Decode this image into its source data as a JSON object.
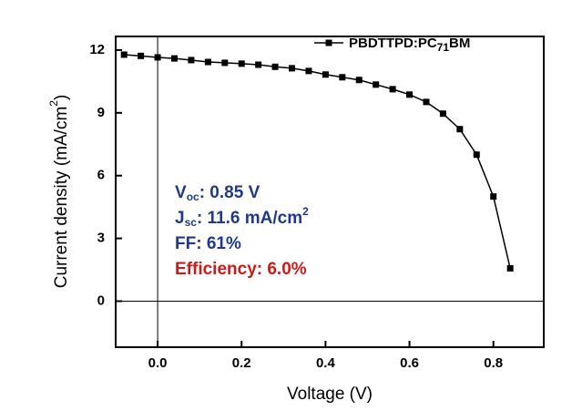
{
  "chart_data": {
    "type": "line",
    "x_label": "Voltage (V)",
    "y_label": [
      "Current density (mA/cm",
      "2",
      ")"
    ],
    "xlim": [
      -0.1,
      0.92
    ],
    "ylim": [
      -2.2,
      12.65
    ],
    "xticks": [
      {
        "value": 0,
        "label": "0.0"
      },
      {
        "value": 0.2,
        "label": "0.2"
      },
      {
        "value": 0.4,
        "label": "0.4"
      },
      {
        "value": 0.6,
        "label": "0.6"
      },
      {
        "value": 0.8,
        "label": "0.8"
      }
    ],
    "yticks": [
      0,
      3,
      6,
      9,
      12
    ],
    "zero_lines": true,
    "legend": "upper right",
    "x": [
      -0.08,
      -0.04,
      0.0,
      0.04,
      0.08,
      0.12,
      0.16,
      0.2,
      0.24,
      0.28,
      0.32,
      0.36,
      0.4,
      0.44,
      0.48,
      0.52,
      0.56,
      0.6,
      0.64,
      0.68,
      0.72,
      0.76,
      0.8,
      0.84
    ],
    "series": [
      {
        "name": [
          "PBDTTPD:PC",
          "71",
          "BM"
        ],
        "color": "#000000",
        "values": [
          11.78,
          11.72,
          11.65,
          11.6,
          11.52,
          11.43,
          11.39,
          11.35,
          11.3,
          11.2,
          11.13,
          11.0,
          10.83,
          10.7,
          10.57,
          10.35,
          10.13,
          9.87,
          9.52,
          8.96,
          8.22,
          7.0,
          5.0,
          1.57
        ]
      }
    ],
    "annotations": [
      {
        "parts": [
          "V",
          "oc",
          ": 0.85 V"
        ],
        "color": "#1f3a8a"
      },
      {
        "parts": [
          "J",
          "sc",
          ": 11.6 mA/cm",
          "2"
        ],
        "color": "#1f3a8a"
      },
      {
        "parts": [
          "FF: 61%"
        ],
        "color": "#1f3a8a"
      },
      {
        "parts": [
          "Efficiency: 6.0%"
        ],
        "color": "#cc1a1a"
      }
    ]
  }
}
